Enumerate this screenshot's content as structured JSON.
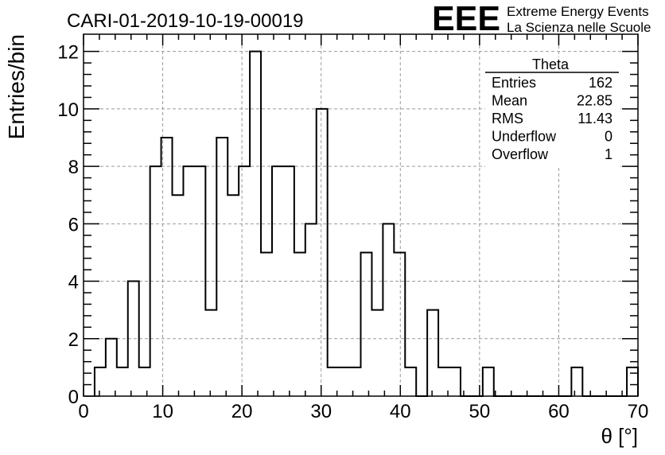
{
  "chart_data": {
    "type": "histogram",
    "title": "CARI-01-2019-10-19-00019",
    "xlabel": "θ [°]",
    "ylabel": "Entries/bin",
    "xlim": [
      0,
      70
    ],
    "ylim": [
      0,
      12.6
    ],
    "grid": true,
    "bin_width": 1.4,
    "bin_start": 1.4,
    "counts": [
      1,
      2,
      1,
      4,
      1,
      8,
      9,
      7,
      8,
      8,
      3,
      9,
      7,
      8,
      12,
      5,
      8,
      8,
      5,
      6,
      10,
      1,
      1,
      1,
      5,
      3,
      6,
      5,
      1,
      0,
      3,
      1,
      1,
      0,
      0,
      1,
      0,
      0,
      0,
      0,
      0,
      0,
      0,
      1,
      0,
      0,
      0,
      0,
      1
    ],
    "x_ticks": [
      "0",
      "10",
      "20",
      "30",
      "40",
      "50",
      "60",
      "70"
    ],
    "y_ticks": [
      "0",
      "2",
      "4",
      "6",
      "8",
      "10",
      "12"
    ],
    "legend_position": "top-right"
  },
  "logo": {
    "mark": "EEE",
    "line1": "Extreme Energy Events",
    "line2": "La Scienza nelle Scuole",
    "color": "#1a1aee"
  },
  "stats": {
    "title": "Theta",
    "rows": [
      {
        "label": "Entries",
        "value": "162"
      },
      {
        "label": "Mean",
        "value": "22.85"
      },
      {
        "label": "RMS",
        "value": "11.43"
      },
      {
        "label": "Underflow",
        "value": "0"
      },
      {
        "label": "Overflow",
        "value": "1"
      }
    ]
  }
}
